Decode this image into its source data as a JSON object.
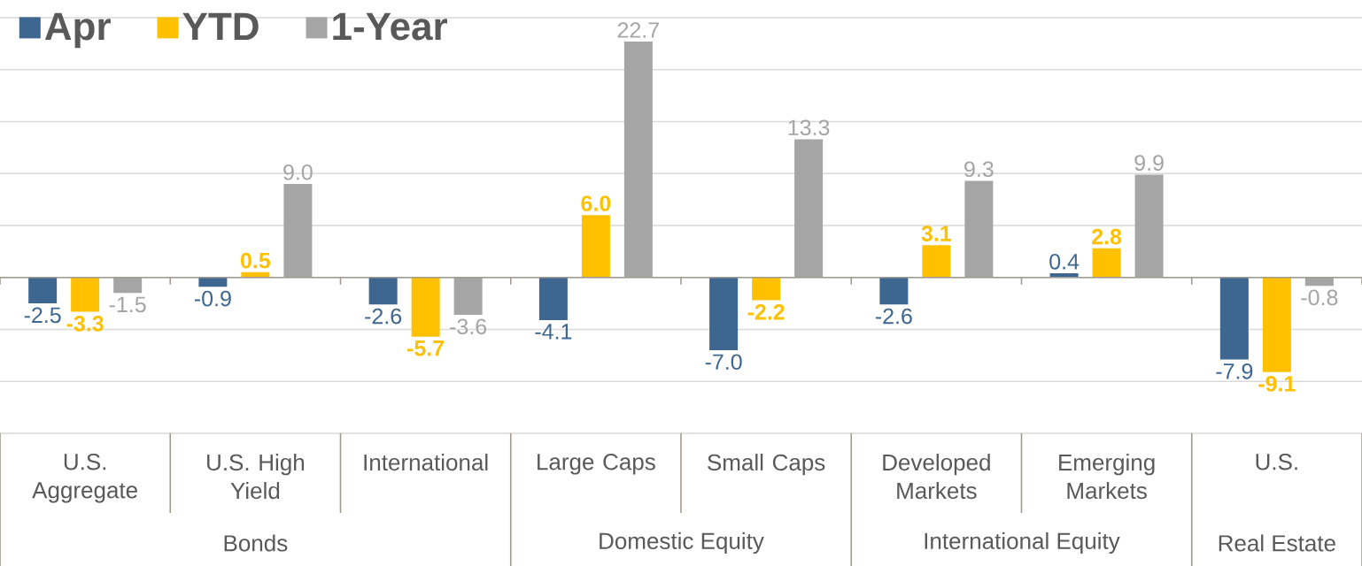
{
  "chart_data": {
    "type": "bar",
    "categories": [
      "U.S. Aggregate",
      "U.S. High Yield",
      "International",
      "Large Caps",
      "Small Caps",
      "Developed Markets",
      "Emerging Markets",
      "U.S."
    ],
    "series": [
      {
        "name": "Apr",
        "color": "#3d6690",
        "values": [
          -2.5,
          -0.9,
          -2.6,
          -4.1,
          -7.0,
          -2.6,
          0.4,
          -7.9
        ],
        "value_labels": [
          "-2.5",
          "-0.9",
          "-2.6",
          "-4.1",
          "-7.0",
          "-2.6",
          "0.4",
          "-7.9"
        ]
      },
      {
        "name": "YTD",
        "color": "#ffc000",
        "values": [
          -3.3,
          0.5,
          -5.7,
          6.0,
          -2.2,
          3.1,
          2.8,
          -9.1
        ],
        "value_labels": [
          "-3.3",
          "0.5",
          "-5.7",
          "6.0",
          "-2.2",
          "3.1",
          "2.8",
          "-9.1"
        ]
      },
      {
        "name": "1-Year",
        "color": "#a5a5a5",
        "values": [
          -1.5,
          9.0,
          -3.6,
          22.7,
          13.3,
          9.3,
          9.9,
          -0.8
        ],
        "value_labels": [
          "-1.5",
          "9.0",
          "-3.6",
          "22.7",
          "13.3",
          "9.3",
          "9.9",
          "-0.8"
        ]
      }
    ],
    "annotations": [
      "Bonds",
      "Domestic Equity",
      "International Equity",
      "Real Estate"
    ],
    "ylim": [
      -15,
      25
    ],
    "yticks": [
      {
        "value": -15,
        "label": null
      },
      {
        "value": -10,
        "label": null
      },
      {
        "value": -5,
        "label": null
      },
      {
        "value": 0,
        "label": null
      },
      {
        "value": 5,
        "label": null
      },
      {
        "value": 10,
        "label": null
      },
      {
        "value": 15,
        "label": null
      },
      {
        "value": 20,
        "label": null
      },
      {
        "value": 25,
        "label": null
      }
    ],
    "grid": "y",
    "legend": "top left",
    "tick_labels": "x"
  }
}
